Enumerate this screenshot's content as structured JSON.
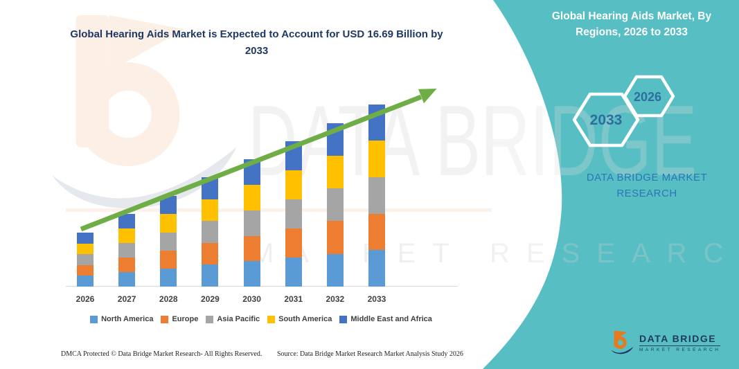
{
  "right_panel": {
    "heading": "Global Hearing Aids Market, By Regions, 2026 to 2033",
    "hexagon_large_label": "2033",
    "hexagon_small_label": "2026",
    "brand_caption": "DATA BRIDGE MARKET RESEARCH"
  },
  "logo": {
    "name": "DATA BRIDGE",
    "tagline": "MARKET RESEARCH"
  },
  "watermarks": {
    "brand": "DATA BRIDGE",
    "tagline": "MARKET RESEARCH"
  },
  "footer": {
    "left": "DMCA Protected © Data Bridge Market Research-  All Rights Reserved.",
    "right": "Source: Data Bridge Market Research  Market Analysis Study 2026"
  },
  "colors": {
    "teal_panel": "#57BEC3",
    "title_navy": "#1F3864",
    "hexagon_label_blue": "#2E6E9E",
    "brand_caption_blue": "#2E75B6",
    "trend_arrow_green": "#6FAE46",
    "axis_line_gray": "#D9D9D9",
    "label_gray": "#404040",
    "logo_navy": "#1E3A5F",
    "logo_orange": "#E87A1E"
  },
  "chart_data": {
    "type": "bar",
    "stacked": true,
    "title": "Global Hearing Aids Market is Expected to Account for USD 16.69 Billion by 2033",
    "unit": "USD Billion",
    "categories": [
      "2026",
      "2027",
      "2028",
      "2029",
      "2030",
      "2031",
      "2032",
      "2033"
    ],
    "series": [
      {
        "name": "North America",
        "color": "#5B9BD5",
        "values": [
          0.99,
          1.33,
          1.66,
          2.0,
          2.33,
          2.67,
          3.0,
          3.34
        ]
      },
      {
        "name": "Europe",
        "color": "#ED7D31",
        "values": [
          0.99,
          1.33,
          1.66,
          2.0,
          2.33,
          2.67,
          3.0,
          3.34
        ]
      },
      {
        "name": "Asia Pacific",
        "color": "#A5A5A5",
        "values": [
          0.99,
          1.33,
          1.66,
          2.0,
          2.33,
          2.67,
          3.0,
          3.34
        ]
      },
      {
        "name": "South America",
        "color": "#FFC000",
        "values": [
          0.99,
          1.33,
          1.66,
          2.0,
          2.33,
          2.67,
          3.0,
          3.34
        ]
      },
      {
        "name": "Middle East and Africa",
        "color": "#4472C4",
        "values": [
          0.99,
          1.33,
          1.66,
          2.0,
          2.33,
          2.67,
          3.0,
          3.34
        ]
      }
    ],
    "totals_estimated": [
      4.95,
      6.65,
      8.3,
      10.0,
      11.65,
      13.35,
      15.0,
      16.69
    ],
    "ylim": [
      0,
      18
    ],
    "grid": false,
    "y_axis_shown": false,
    "legend_position": "bottom",
    "annotations": [
      "upward green trend arrow from 2026 to 2033"
    ]
  }
}
